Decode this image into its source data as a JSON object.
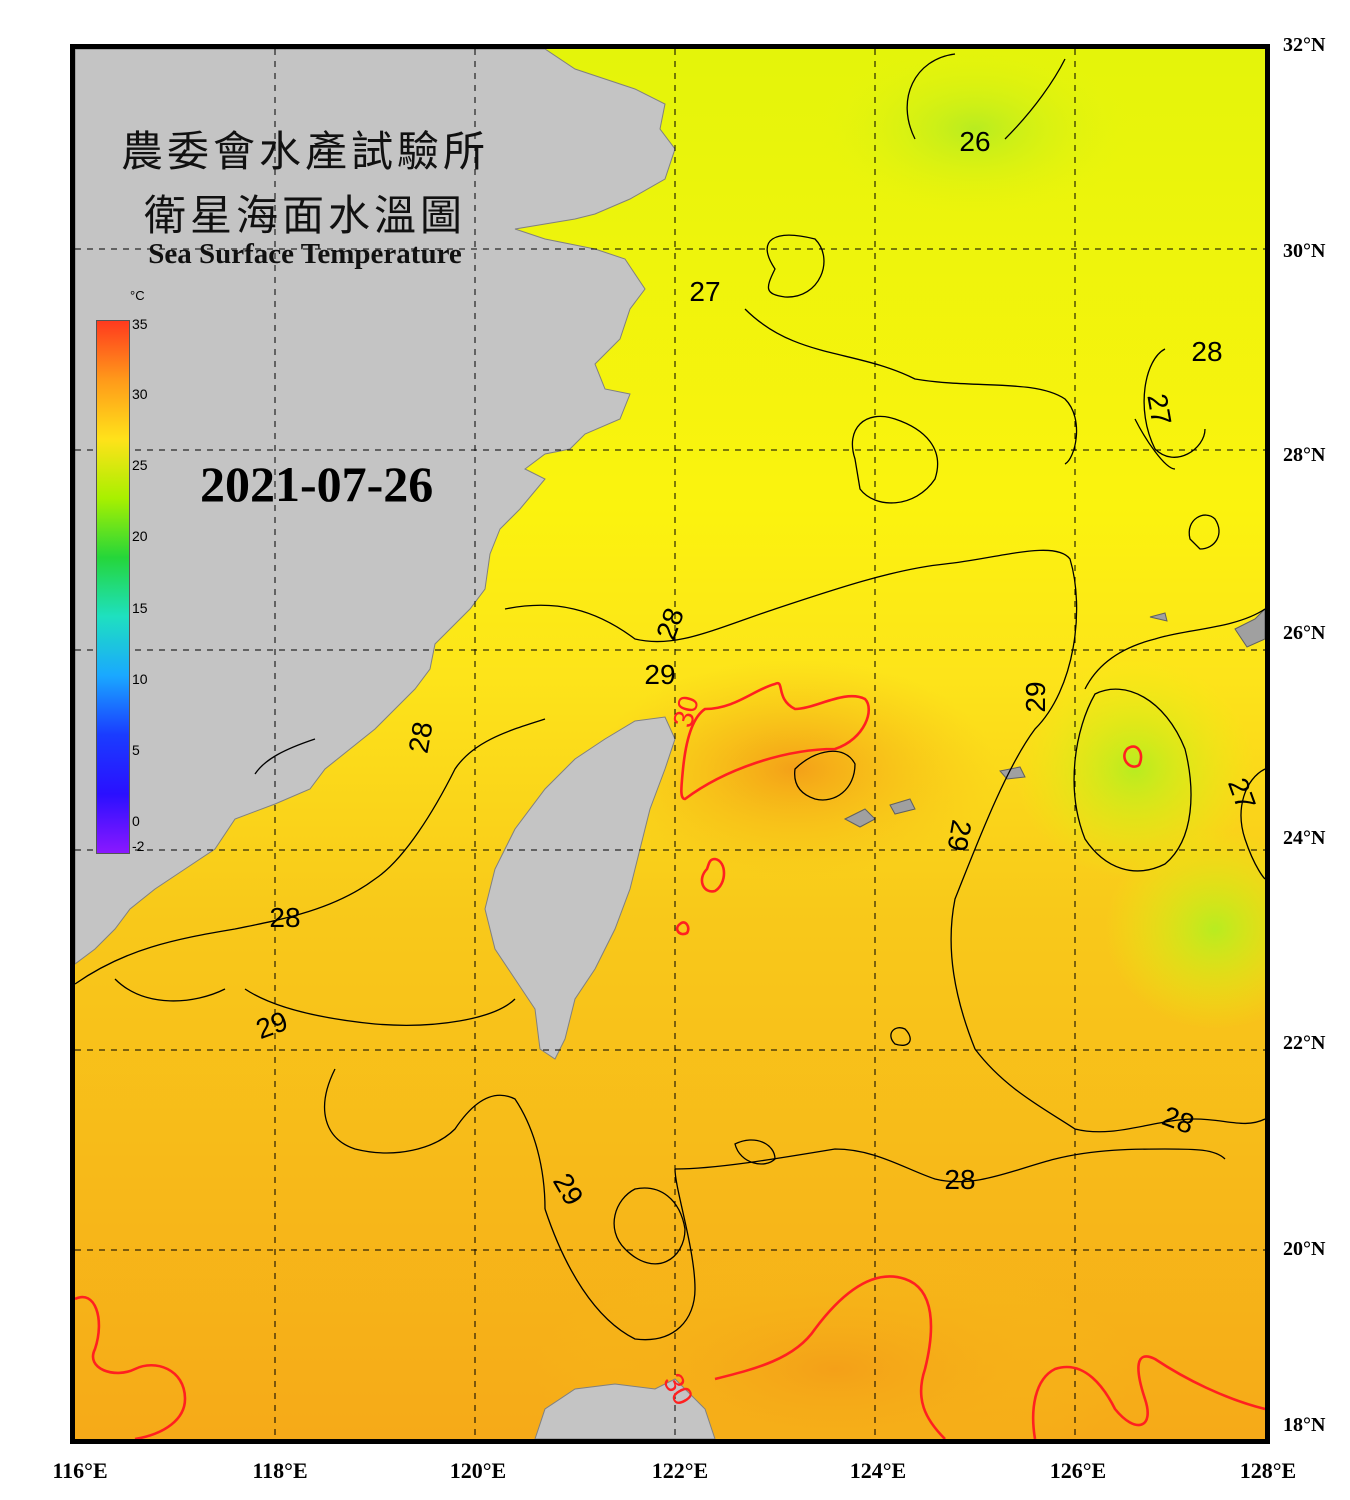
{
  "title": {
    "line1": "農委會水產試驗所",
    "line2": "衛星海面水溫圖",
    "line3": "Sea Surface Temperature"
  },
  "date": "2021-07-26",
  "colorbar": {
    "unit": "°C",
    "ticks": [
      "35",
      "30",
      "25",
      "20",
      "15",
      "10",
      "5",
      "0",
      "-2"
    ],
    "colors": [
      "#ff3a1e",
      "#ff9a1a",
      "#ffe21a",
      "#a8f000",
      "#25d63a",
      "#1ee0c0",
      "#1aa8ff",
      "#1a3cff",
      "#2a10ff",
      "#8a18ff"
    ]
  },
  "axes": {
    "latitude_labels": [
      "32°N",
      "30°N",
      "28°N",
      "26°N",
      "24°N",
      "22°N",
      "20°N",
      "18°N"
    ],
    "longitude_labels": [
      "116°E",
      "118°E",
      "120°E",
      "122°E",
      "124°E",
      "126°E",
      "128°E"
    ]
  },
  "contour_labels": [
    {
      "text": "26",
      "color": "#000000"
    },
    {
      "text": "27",
      "color": "#000000"
    },
    {
      "text": "28",
      "color": "#000000"
    },
    {
      "text": "27",
      "color": "#000000"
    },
    {
      "text": "28",
      "color": "#000000"
    },
    {
      "text": "29",
      "color": "#000000"
    },
    {
      "text": "30",
      "color": "#ff2020"
    },
    {
      "text": "28",
      "color": "#000000"
    },
    {
      "text": "28",
      "color": "#000000"
    },
    {
      "text": "29",
      "color": "#000000"
    },
    {
      "text": "27",
      "color": "#000000"
    },
    {
      "text": "28",
      "color": "#000000"
    },
    {
      "text": "29",
      "color": "#000000"
    },
    {
      "text": "29",
      "color": "#000000"
    },
    {
      "text": "28",
      "color": "#000000"
    },
    {
      "text": "29",
      "color": "#000000"
    },
    {
      "text": "30",
      "color": "#ff2020"
    }
  ],
  "colors": {
    "land": "#c4c4c4",
    "warm_sea": "#f6b418",
    "mid_sea": "#ffe21a",
    "cool_sea": "#d8f20a",
    "red_contour": "#ff2020",
    "grid": "#000000"
  }
}
